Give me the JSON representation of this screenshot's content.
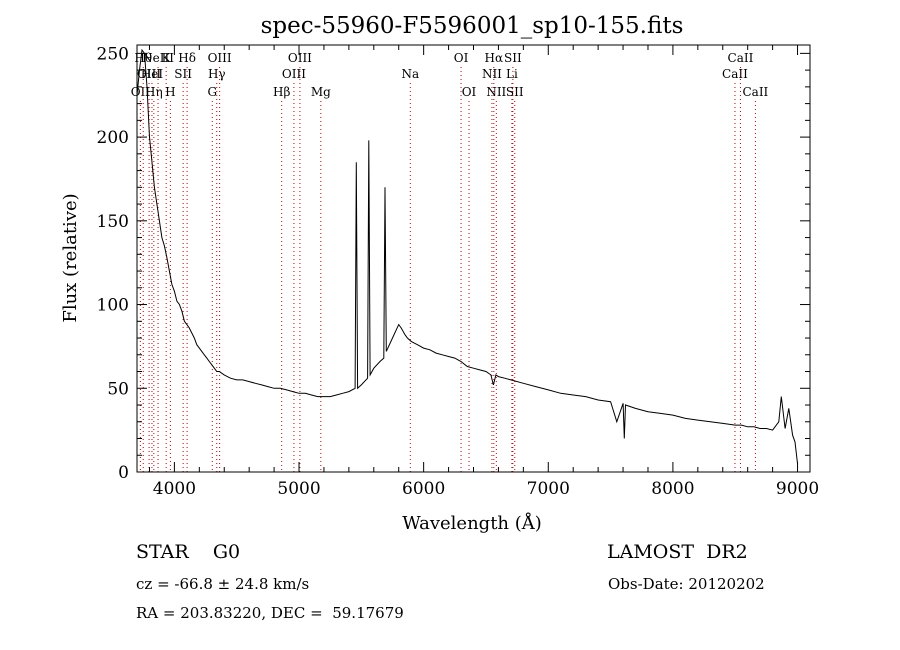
{
  "chart_data": {
    "type": "line",
    "title": "spec-55960-F5596001_sp10-155.fits",
    "xlabel": "Wavelength (Å)",
    "ylabel": "Flux (relative)",
    "xlim": [
      3700,
      9100
    ],
    "ylim": [
      0,
      255
    ],
    "xticks": [
      4000,
      5000,
      6000,
      7000,
      8000,
      9000
    ],
    "yticks": [
      0,
      50,
      100,
      150,
      200,
      250
    ],
    "series": [
      {
        "x": [
          3700,
          3720,
          3740,
          3760,
          3780,
          3800,
          3820,
          3840,
          3860,
          3880,
          3900,
          3920,
          3940,
          3960,
          3980,
          4000,
          4020,
          4040,
          4060,
          4080,
          4100,
          4120,
          4140,
          4160,
          4180,
          4200,
          4220,
          4240,
          4260,
          4280,
          4300,
          4320,
          4340,
          4360,
          4380,
          4400,
          4450,
          4500,
          4550,
          4600,
          4650,
          4700,
          4750,
          4800,
          4850,
          4900,
          4950,
          5000,
          5050,
          5100,
          5150,
          5200,
          5250,
          5300,
          5350,
          5400,
          5450,
          5460,
          5470,
          5500,
          5550,
          5560,
          5570,
          5600,
          5650,
          5680,
          5690,
          5700,
          5750,
          5800,
          5820,
          5850,
          5870,
          5900,
          5950,
          6000,
          6050,
          6100,
          6150,
          6200,
          6250,
          6300,
          6350,
          6400,
          6450,
          6500,
          6540,
          6560,
          6580,
          6600,
          6650,
          6700,
          6800,
          6900,
          7000,
          7100,
          7200,
          7300,
          7400,
          7500,
          7550,
          7600,
          7610,
          7620,
          7700,
          7800,
          7900,
          8000,
          8100,
          8200,
          8300,
          8400,
          8500,
          8550,
          8600,
          8650,
          8700,
          8750,
          8800,
          8850,
          8870,
          8900,
          8930,
          8960,
          8980,
          9000
        ],
        "y": [
          225,
          240,
          252,
          250,
          230,
          200,
          185,
          170,
          160,
          150,
          140,
          135,
          128,
          120,
          112,
          108,
          102,
          100,
          96,
          90,
          88,
          86,
          83,
          80,
          76,
          74,
          72,
          70,
          68,
          66,
          64,
          62,
          60,
          60,
          59,
          58,
          56,
          55,
          55,
          54,
          53,
          52,
          51,
          50,
          50,
          49,
          48,
          47,
          47,
          46,
          45,
          45,
          45,
          46,
          47,
          48,
          50,
          185,
          50,
          52,
          56,
          198,
          58,
          62,
          66,
          68,
          170,
          72,
          80,
          88,
          86,
          82,
          80,
          78,
          76,
          74,
          73,
          71,
          70,
          69,
          68,
          66,
          63,
          62,
          61,
          60,
          58,
          52,
          58,
          57,
          56,
          55,
          53,
          51,
          49,
          47,
          46,
          45,
          43,
          42,
          30,
          41,
          20,
          40,
          38,
          36,
          35,
          34,
          32,
          31,
          30,
          29,
          28,
          28,
          27,
          27,
          26,
          26,
          25,
          30,
          45,
          26,
          38,
          22,
          18,
          5
        ]
      }
    ],
    "line_markers": [
      {
        "wl": 3727,
        "label": "OII",
        "row": 3
      },
      {
        "wl": 3750,
        "label": "Hθ",
        "row": 1
      },
      {
        "wl": 3797,
        "label": "OIII",
        "row": 2
      },
      {
        "wl": 3820,
        "label": "HeI",
        "row": 2
      },
      {
        "wl": 3835,
        "label": "Hη",
        "row": 3
      },
      {
        "wl": 3869,
        "label": "NeIII",
        "row": 1
      },
      {
        "wl": 3934,
        "label": "K",
        "row": 1
      },
      {
        "wl": 3968,
        "label": "H",
        "row": 3
      },
      {
        "wl": 4070,
        "label": "SII",
        "row": 2
      },
      {
        "wl": 4102,
        "label": "Hδ",
        "row": 1
      },
      {
        "wl": 4304,
        "label": "G",
        "row": 3
      },
      {
        "wl": 4340,
        "label": "Hγ",
        "row": 2
      },
      {
        "wl": 4363,
        "label": "OIII",
        "row": 1
      },
      {
        "wl": 4861,
        "label": "Hβ",
        "row": 3
      },
      {
        "wl": 4959,
        "label": "OIII",
        "row": 2
      },
      {
        "wl": 5007,
        "label": "OIII",
        "row": 1
      },
      {
        "wl": 5175,
        "label": "Mg",
        "row": 3
      },
      {
        "wl": 5893,
        "label": "Na",
        "row": 2
      },
      {
        "wl": 6300,
        "label": "OI",
        "row": 1
      },
      {
        "wl": 6364,
        "label": "OI",
        "row": 3
      },
      {
        "wl": 6548,
        "label": "NII",
        "row": 2
      },
      {
        "wl": 6563,
        "label": "Hα",
        "row": 1
      },
      {
        "wl": 6583,
        "label": "NII",
        "row": 3
      },
      {
        "wl": 6708,
        "label": "Li",
        "row": 2
      },
      {
        "wl": 6716,
        "label": "SII",
        "row": 1
      },
      {
        "wl": 6731,
        "label": "SII",
        "row": 3
      },
      {
        "wl": 8498,
        "label": "CaII",
        "row": 2
      },
      {
        "wl": 8542,
        "label": "CaII",
        "row": 1
      },
      {
        "wl": 8662,
        "label": "CaII",
        "row": 3
      }
    ]
  },
  "footer": {
    "object_class": "STAR    G0",
    "survey": "LAMOST  DR2",
    "redshift": "cz = -66.8 ± 24.8 km/s",
    "obs_date": "Obs-Date: 20120202",
    "coords": "RA = 203.83220, DEC =  59.17679"
  }
}
